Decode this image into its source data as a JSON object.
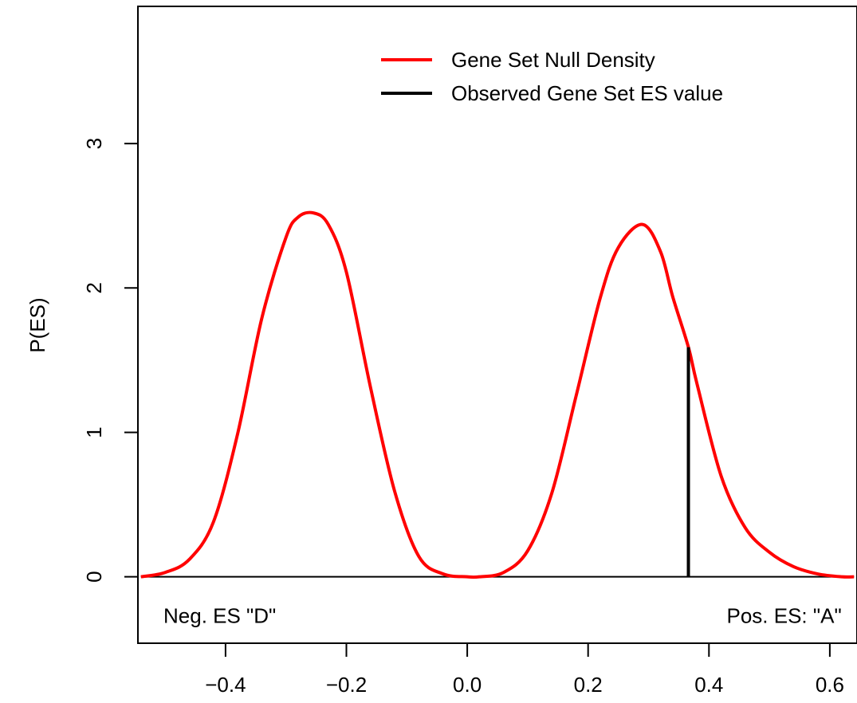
{
  "chart_data": {
    "type": "line",
    "title": "",
    "xlabel": "",
    "ylabel": "P(ES)",
    "xlim": [
      -0.545,
      0.645
    ],
    "ylim": [
      -0.46,
      3.95
    ],
    "grid": false,
    "legend_position": "top-right",
    "x_ticks": [
      "-0.4",
      "-0.2",
      "0.0",
      "0.2",
      "0.4",
      "0.6"
    ],
    "x_tick_labels": [
      "−0.4",
      "−0.2",
      "0.0",
      "0.2",
      "0.4",
      "0.6"
    ],
    "y_ticks": [
      "0",
      "1",
      "2",
      "3"
    ],
    "y_tick_labels": [
      "0",
      "1",
      "2",
      "3"
    ],
    "series": [
      {
        "name": "Gene Set Null Density",
        "color": "#ff0000",
        "x": [
          -0.54,
          -0.5,
          -0.46,
          -0.42,
          -0.38,
          -0.34,
          -0.3,
          -0.28,
          -0.255,
          -0.23,
          -0.2,
          -0.16,
          -0.12,
          -0.08,
          -0.04,
          0.0,
          0.02,
          0.06,
          0.1,
          0.14,
          0.18,
          0.22,
          0.25,
          0.29,
          0.32,
          0.34,
          0.366,
          0.38,
          0.42,
          0.46,
          0.5,
          0.54,
          0.58,
          0.62,
          0.64
        ],
        "y": [
          0.0,
          0.03,
          0.12,
          0.38,
          0.99,
          1.79,
          2.35,
          2.49,
          2.52,
          2.44,
          2.11,
          1.31,
          0.59,
          0.14,
          0.02,
          0.0,
          0.0,
          0.03,
          0.18,
          0.58,
          1.25,
          1.93,
          2.28,
          2.44,
          2.25,
          1.94,
          1.59,
          1.34,
          0.7,
          0.34,
          0.17,
          0.07,
          0.02,
          0.0,
          0.0
        ]
      }
    ],
    "reference_line": {
      "y": 0,
      "color": "#000000"
    },
    "observed": {
      "name": "Observed Gene Set ES value",
      "x": 0.366,
      "y": 1.59,
      "color": "#000000"
    },
    "annotations": [
      {
        "text": "Neg. ES \"D\"",
        "x": -0.545,
        "y": -0.27,
        "align": "left"
      },
      {
        "text": "Pos. ES: \"A\"",
        "x": 0.638,
        "y": -0.27,
        "align": "right"
      }
    ]
  }
}
